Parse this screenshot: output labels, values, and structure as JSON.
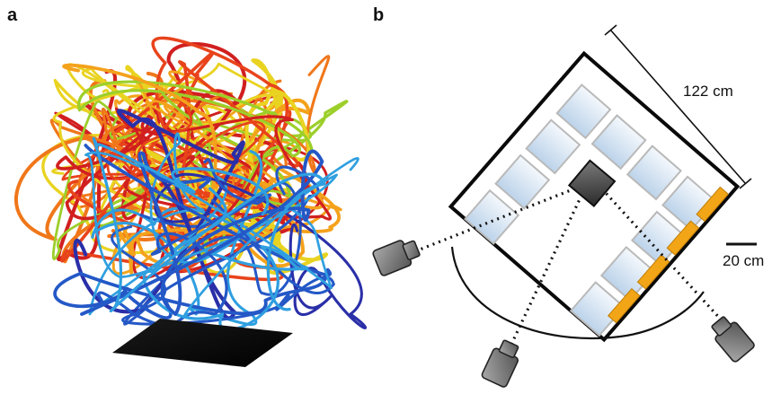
{
  "panels": {
    "a": {
      "label": "a"
    },
    "b": {
      "label": "b"
    }
  },
  "dimensions": {
    "arena_size": "122 cm",
    "scale_bar": "20 cm"
  },
  "colors": {
    "trajectory_palette": [
      "#d11f1f",
      "#e8431b",
      "#f0771a",
      "#f4a21c",
      "#e9d321",
      "#9ccf2a",
      "#2f9fe0",
      "#2458c7",
      "#2a2fa8"
    ],
    "panel_fill": "#dbe9f6",
    "led_strip": "#f2a516",
    "camera": "#6b6b6b",
    "target_plate": "#050505"
  },
  "icons": {
    "cameras": [
      "camera-icon",
      "camera-icon",
      "camera-icon"
    ],
    "target": "target-cube-icon"
  }
}
